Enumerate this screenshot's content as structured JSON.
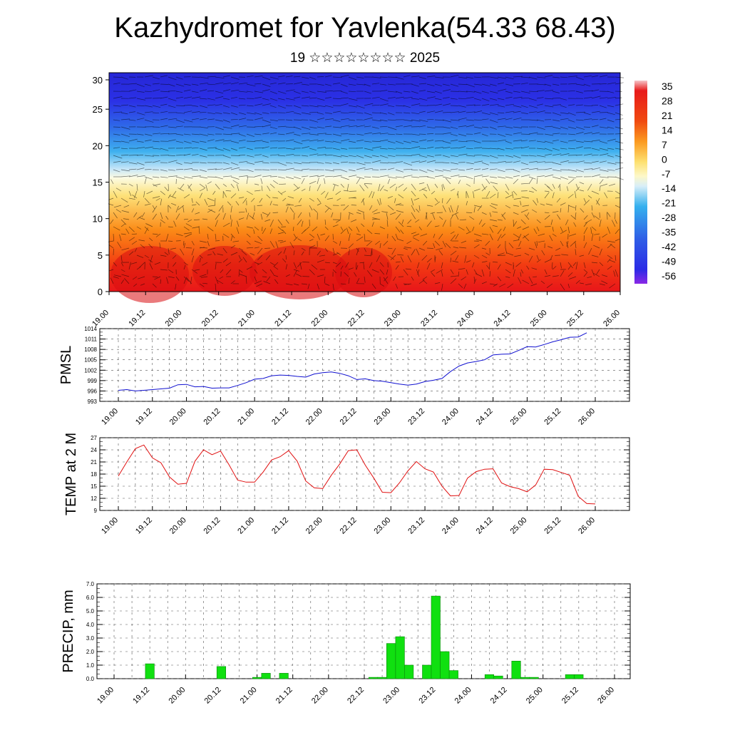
{
  "header": {
    "title": "Kazhydromet for Yavlenka(54.33 68.43)",
    "subtitle": "19 ☆☆☆☆☆☆☆☆ 2025"
  },
  "time_labels": [
    "19.00",
    "19.12",
    "20.00",
    "20.12",
    "21.00",
    "21.12",
    "22.00",
    "22.12",
    "23.00",
    "23.12",
    "24.00",
    "24.12",
    "25.00",
    "25.12",
    "26.00"
  ],
  "chart_data": [
    {
      "type": "heatmap",
      "ylim": [
        0,
        30
      ],
      "y_ticks": [
        "0",
        "5",
        "10",
        "15",
        "20",
        "25",
        "30"
      ],
      "colorbar_labels": [
        "35",
        "28",
        "21",
        "14",
        "7",
        "0",
        "-7",
        "-14",
        "-21",
        "-28",
        "-35",
        "-42",
        "-49",
        "-56"
      ],
      "colors": {
        "warm": "#e8161a",
        "mid": "#f7e07a",
        "cold": "#2b31e6"
      }
    },
    {
      "type": "line",
      "ylabel": "PMSL",
      "ylim": [
        993,
        1014
      ],
      "y_ticks": [
        "1014",
        "1011",
        "1008",
        "1005",
        "1002",
        "999",
        "996",
        "993"
      ],
      "color": "#1010d0",
      "series": [
        {
          "values": [
            996.2,
            996.4,
            996.0,
            996.2,
            996.4,
            996.6,
            996.8,
            997.8,
            997.9,
            997.2,
            997.3,
            996.8,
            996.9,
            996.9,
            997.6,
            998.4,
            999.4,
            999.6,
            1000.4,
            1000.6,
            1000.5,
            1000.2,
            1000.0,
            1000.9,
            1001.3,
            1001.5,
            1001.1,
            1000.4,
            999.3,
            999.5,
            999.0,
            998.8,
            998.4,
            998.0,
            997.7,
            998.0,
            998.7,
            999.1,
            999.6,
            1001.6,
            1003.2,
            1004.1,
            1004.5,
            1005.0,
            1006.4,
            1006.6,
            1006.7,
            1007.7,
            1008.8,
            1008.7,
            1009.4,
            1010.2,
            1010.8,
            1011.5,
            1011.6,
            1012.8
          ]
        }
      ]
    },
    {
      "type": "line",
      "ylabel": "TEMP at 2 M",
      "ylim": [
        9,
        27
      ],
      "y_ticks": [
        "27",
        "24",
        "21",
        "18",
        "15",
        "12",
        "9"
      ],
      "color": "#e01010",
      "series": [
        {
          "values": [
            17.5,
            21.0,
            24.3,
            25.2,
            22.0,
            20.8,
            17.3,
            15.5,
            15.7,
            21.2,
            24.0,
            22.8,
            23.7,
            20.3,
            16.5,
            16.0,
            16.0,
            18.5,
            21.5,
            22.3,
            23.8,
            21.2,
            16.3,
            14.6,
            14.4,
            17.7,
            20.5,
            23.8,
            24.0,
            20.2,
            17.0,
            13.5,
            13.4,
            15.8,
            18.8,
            21.1,
            19.3,
            18.5,
            15.0,
            12.6,
            12.7,
            17.0,
            18.6,
            19.2,
            19.3,
            15.8,
            14.9,
            14.4,
            13.6,
            15.3,
            19.2,
            19.1,
            18.4,
            17.7,
            12.5,
            10.7,
            10.6
          ]
        }
      ]
    },
    {
      "type": "bar",
      "ylabel": "PRECIP, mm",
      "ylim": [
        0,
        7
      ],
      "y_ticks": [
        "7.0",
        "6.0",
        "5.0",
        "4.0",
        "3.0",
        "2.0",
        "1.0",
        "0.0"
      ],
      "color": "#10e010",
      "values": [
        0,
        0,
        0,
        0,
        1.1,
        0,
        0,
        0,
        0,
        0,
        0,
        0,
        0.9,
        0,
        0,
        0,
        0.1,
        0.4,
        0,
        0.4,
        0,
        0,
        0,
        0,
        0,
        0,
        0,
        0,
        0,
        0.1,
        0.1,
        2.6,
        3.1,
        1.0,
        0,
        1.0,
        6.1,
        2.0,
        0.6,
        0,
        0,
        0,
        0.3,
        0.2,
        0,
        1.3,
        0.1,
        0.1,
        0,
        0,
        0,
        0.3,
        0.3,
        0,
        0,
        0
      ]
    }
  ]
}
